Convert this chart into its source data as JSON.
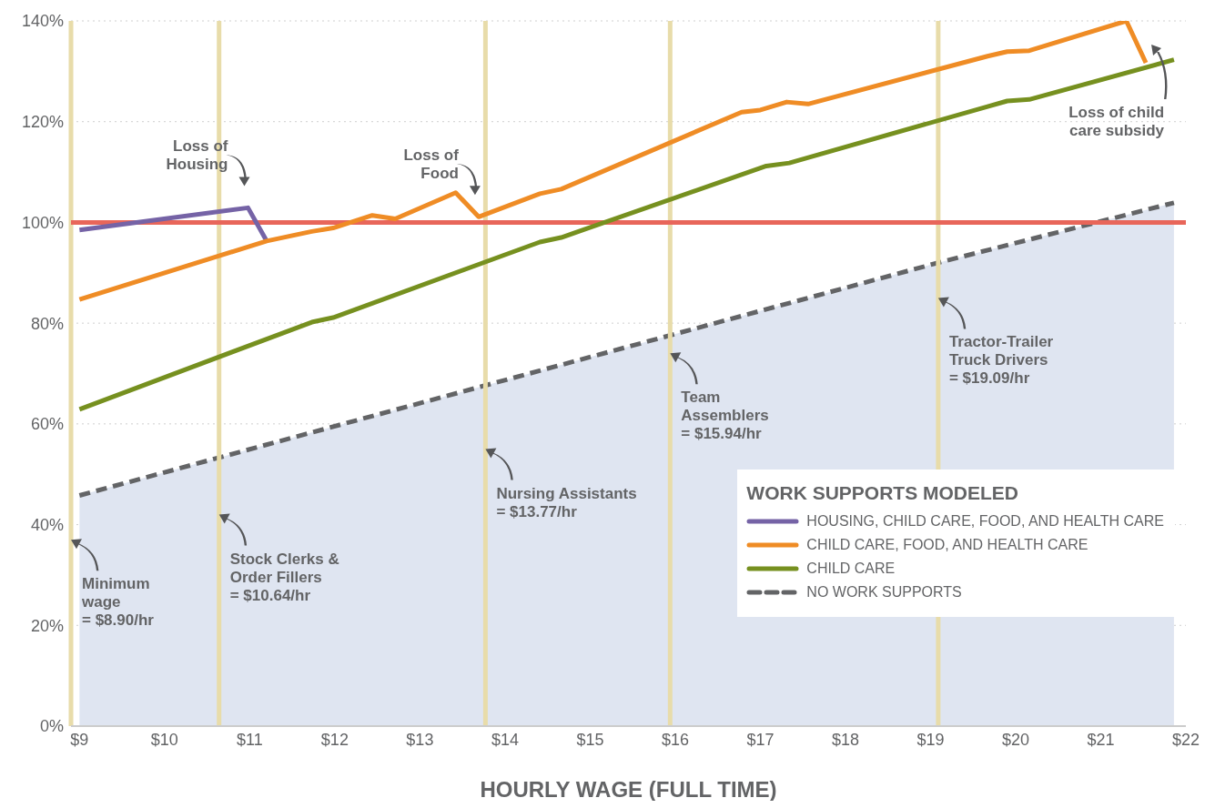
{
  "chart_data": {
    "type": "line",
    "xlabel": "HOURLY WAGE (FULL TIME)",
    "legend_title": "WORK SUPPORTS MODELED",
    "legend": "bottom right",
    "grid": "y",
    "marker": "none",
    "line_style": "solid",
    "xlim": [
      8.9,
      22
    ],
    "ylim": [
      0,
      140
    ],
    "xticks": [
      {
        "value": 9,
        "label": "$9"
      },
      {
        "value": 10,
        "label": "$10"
      },
      {
        "value": 11,
        "label": "$11"
      },
      {
        "value": 12,
        "label": "$12"
      },
      {
        "value": 13,
        "label": "$13"
      },
      {
        "value": 14,
        "label": "$14"
      },
      {
        "value": 15,
        "label": "$15"
      },
      {
        "value": 16,
        "label": "$16"
      },
      {
        "value": 17,
        "label": "$17"
      },
      {
        "value": 18,
        "label": "$18"
      },
      {
        "value": 19,
        "label": "$19"
      },
      {
        "value": 20,
        "label": "$20"
      },
      {
        "value": 21,
        "label": "$21"
      },
      {
        "value": 22,
        "label": "$22"
      }
    ],
    "yticks": [
      {
        "value": 0,
        "label": "0%"
      },
      {
        "value": 20,
        "label": "20%"
      },
      {
        "value": 40,
        "label": "40%"
      },
      {
        "value": 60,
        "label": "60%"
      },
      {
        "value": 80,
        "label": "80%"
      },
      {
        "value": 100,
        "label": "100%"
      },
      {
        "value": 120,
        "label": "120%"
      },
      {
        "value": 140,
        "label": "140%"
      }
    ],
    "series": [
      {
        "name": "NO WORK SUPPORTS",
        "type": "area",
        "line_style": "dashed",
        "color": "#636466",
        "x": [
          9.0,
          19.09,
          21.86
        ],
        "values": [
          45.8,
          92.0,
          103.9
        ]
      },
      {
        "name": "HOUSING, CHILD CARE, FOOD, AND HEALTH CARE",
        "color": "#7563a6",
        "x": [
          9.0,
          10.98,
          11.2
        ],
        "values": [
          98.5,
          102.9,
          96.3
        ]
      },
      {
        "name": "CHILD CARE, FOOD, AND HEALTH CARE",
        "color": "#ef8c25",
        "x": [
          9.0,
          11.2,
          11.73,
          11.98,
          12.44,
          12.71,
          13.42,
          13.69,
          14.41,
          14.66,
          16.78,
          17.0,
          17.31,
          17.56,
          19.67,
          19.9,
          20.16,
          21.3,
          21.53
        ],
        "values": [
          84.7,
          96.3,
          98.2,
          98.9,
          101.4,
          100.7,
          105.9,
          101.1,
          105.7,
          106.6,
          121.9,
          122.3,
          123.9,
          123.5,
          133.0,
          133.9,
          134.1,
          140,
          131.7
        ]
      },
      {
        "name": "CHILD CARE",
        "color": "#76901f",
        "x": [
          9.0,
          11.73,
          11.98,
          14.41,
          14.66,
          17.07,
          17.34,
          19.67,
          19.9,
          20.16,
          21.86
        ],
        "values": [
          62.9,
          80.2,
          81.1,
          96.1,
          97.0,
          111.2,
          111.8,
          123.0,
          124.1,
          124.4,
          132.3
        ]
      }
    ],
    "ref_lines": [
      {
        "axis": "x",
        "value": 8.9,
        "color": "#e8dcaa"
      },
      {
        "axis": "x",
        "value": 10.64,
        "color": "#e8dcaa"
      },
      {
        "axis": "x",
        "value": 13.77,
        "color": "#e8dcaa"
      },
      {
        "axis": "x",
        "value": 15.94,
        "color": "#e8dcaa"
      },
      {
        "axis": "x",
        "value": 19.09,
        "color": "#e8dcaa"
      },
      {
        "axis": "y",
        "value": 100,
        "color": "#e8665a"
      }
    ],
    "annotations": [
      {
        "text": "Loss of\nHousing",
        "x": 10.98,
        "y": 102.9
      },
      {
        "text": "Loss of\nFood",
        "x": 13.69,
        "y": 101.1
      },
      {
        "text": "Loss of child\ncare subsidy",
        "x": 21.53,
        "y": 131.7
      },
      {
        "text": "Minimum\nwage\n= $8.90/hr",
        "x": 8.9,
        "y": 37
      },
      {
        "text": "Stock Clerks &\nOrder Fillers\n= $10.64/hr",
        "x": 10.64,
        "y": 42
      },
      {
        "text": "Nursing Assistants\n= $13.77/hr",
        "x": 13.77,
        "y": 55
      },
      {
        "text": "Team\nAssemblers\n= $15.94/hr",
        "x": 15.94,
        "y": 74
      },
      {
        "text": "Tractor-Trailer\nTruck Drivers\n= $19.09/hr",
        "x": 19.09,
        "y": 85
      }
    ]
  }
}
